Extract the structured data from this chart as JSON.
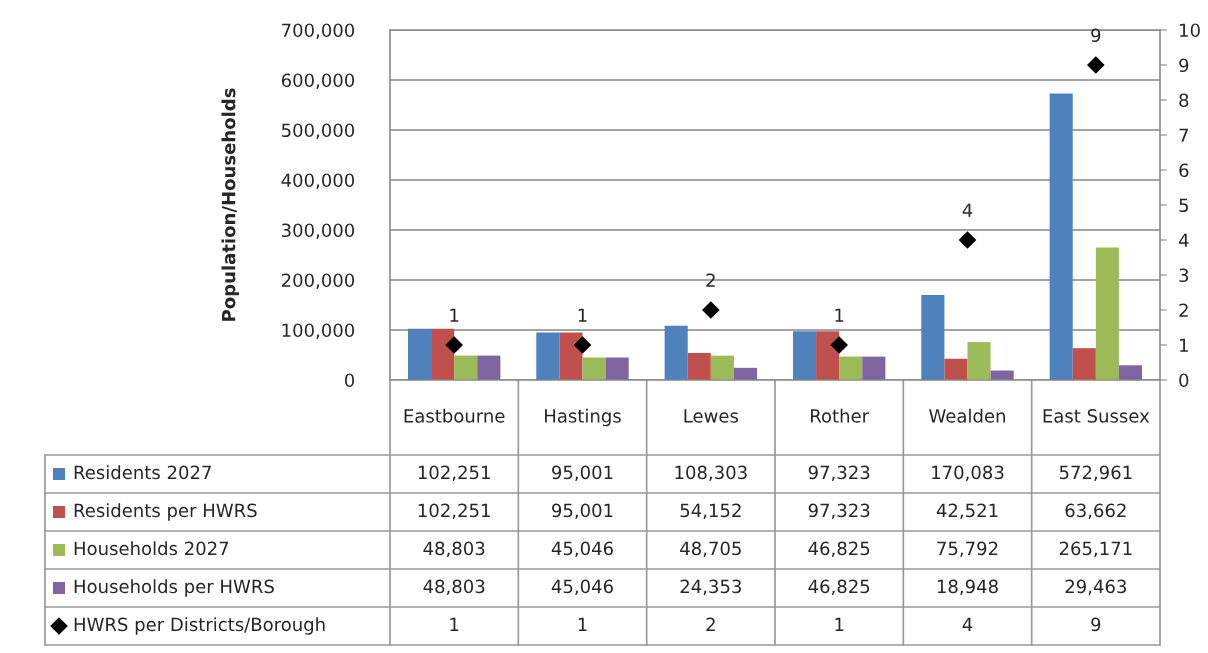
{
  "chart_data": {
    "type": "bar",
    "ylabel": "Population/Households",
    "categories": [
      "Eastbourne",
      "Hastings",
      "Lewes",
      "Rother",
      "Wealden",
      "East Sussex"
    ],
    "series": [
      {
        "name": "Residents 2027",
        "color": "#4f81bd",
        "values": [
          102251,
          95001,
          108303,
          97323,
          170083,
          572961
        ],
        "value_labels": [
          "102,251",
          "95,001",
          "108,303",
          "97,323",
          "170,083",
          "572,961"
        ]
      },
      {
        "name": "Residents per HWRS",
        "color": "#c0504d",
        "values": [
          102251,
          95001,
          54152,
          97323,
          42521,
          63662
        ],
        "value_labels": [
          "102,251",
          "95,001",
          "54,152",
          "97,323",
          "42,521",
          "63,662"
        ]
      },
      {
        "name": "Households 2027",
        "color": "#9bbb59",
        "values": [
          48803,
          45046,
          48705,
          46825,
          75792,
          265171
        ],
        "value_labels": [
          "48,803",
          "45,046",
          "48,705",
          "46,825",
          "75,792",
          "265,171"
        ]
      },
      {
        "name": "Households per HWRS",
        "color": "#8064a2",
        "values": [
          48803,
          45046,
          24353,
          46825,
          18948,
          29463
        ],
        "value_labels": [
          "48,803",
          "45,046",
          "24,353",
          "46,825",
          "18,948",
          "29,463"
        ]
      },
      {
        "name": "HWRS per Districts/Borough",
        "type": "scatter",
        "axis": "y2",
        "marker": "diamond",
        "color": "#000000",
        "values": [
          1,
          1,
          2,
          1,
          4,
          9
        ],
        "value_labels": [
          "1",
          "1",
          "2",
          "1",
          "4",
          "9"
        ]
      }
    ],
    "ylim": [
      0,
      700000
    ],
    "yticks": [
      0,
      {
        "value": 100000,
        "label": "100,000"
      },
      {
        "value": 200000,
        "label": "200,000"
      },
      {
        "value": 300000,
        "label": "300,000"
      },
      {
        "value": 400000,
        "label": "400,000"
      },
      {
        "value": 500000,
        "label": "500,000"
      },
      {
        "value": 600000,
        "label": "600,000"
      },
      {
        "value": 700000,
        "label": "700,000"
      }
    ],
    "y2lim": [
      0,
      10
    ],
    "y2ticks": [
      0,
      1,
      2,
      3,
      4,
      5,
      6,
      7,
      8,
      9,
      10
    ],
    "grid": "y",
    "legend": "bottom"
  }
}
